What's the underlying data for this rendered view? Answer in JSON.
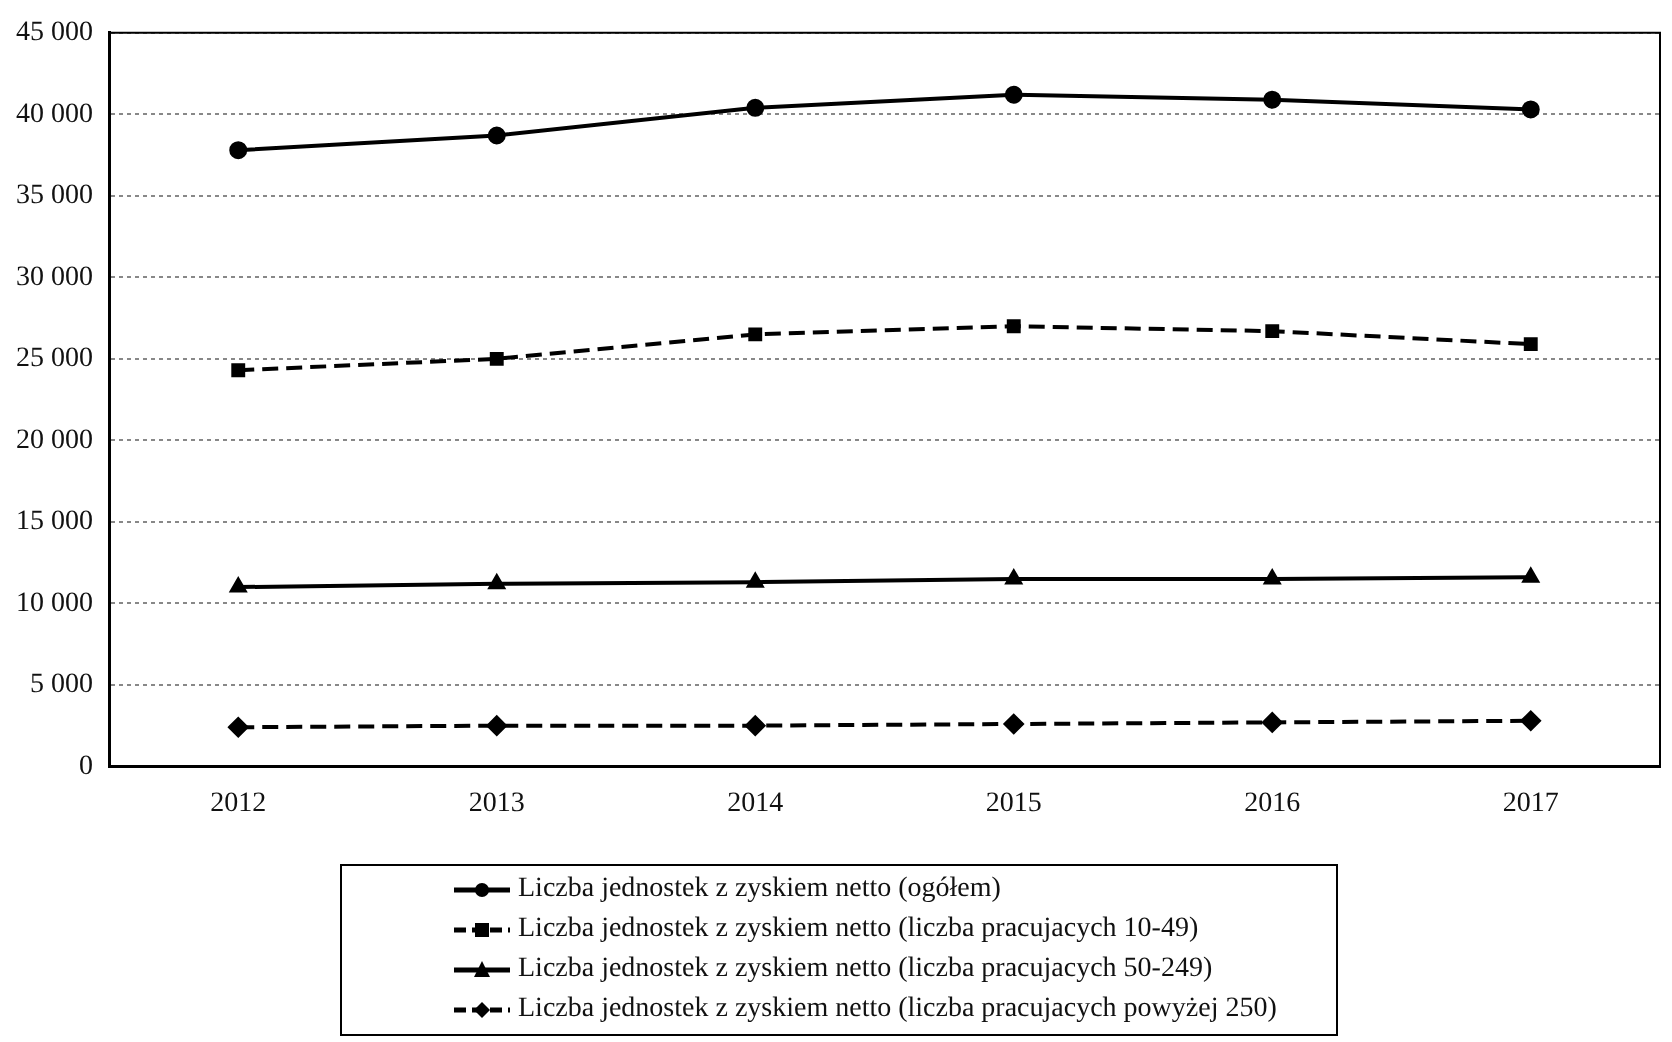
{
  "chart_data": {
    "type": "line",
    "categories": [
      "2012",
      "2013",
      "2014",
      "2015",
      "2016",
      "2017"
    ],
    "ylim": [
      0,
      45000
    ],
    "yticks": [
      {
        "value": 0,
        "label": "0"
      },
      {
        "value": 5000,
        "label": "5 000"
      },
      {
        "value": 10000,
        "label": "10 000"
      },
      {
        "value": 15000,
        "label": "15 000"
      },
      {
        "value": 20000,
        "label": "20 000"
      },
      {
        "value": 25000,
        "label": "25 000"
      },
      {
        "value": 30000,
        "label": "30 000"
      },
      {
        "value": 35000,
        "label": "35 000"
      },
      {
        "value": 40000,
        "label": "40 000"
      },
      {
        "value": 45000,
        "label": "45 000"
      }
    ],
    "grid": "y",
    "legend": "bottom",
    "series": [
      {
        "name": "Liczba jednostek z zyskiem netto (ogółem)",
        "color": "#000000",
        "marker": "circle",
        "line_style": "solid",
        "values": [
          37800,
          38700,
          40400,
          41200,
          40900,
          40300
        ]
      },
      {
        "name": "Liczba jednostek z zyskiem netto (liczba pracujacych 10-49)",
        "color": "#000000",
        "marker": "square",
        "line_style": "dashed",
        "values": [
          24300,
          25000,
          26500,
          27000,
          26700,
          25900
        ]
      },
      {
        "name": "Liczba jednostek z zyskiem netto (liczba pracujacych 50-249)",
        "color": "#000000",
        "marker": "triangle",
        "line_style": "solid",
        "values": [
          11000,
          11200,
          11300,
          11500,
          11500,
          11600
        ]
      },
      {
        "name": "Liczba jednostek z zyskiem netto (liczba pracujacych powyżej 250)",
        "color": "#000000",
        "marker": "diamond",
        "line_style": "dashed",
        "values": [
          2400,
          2500,
          2500,
          2600,
          2700,
          2800
        ]
      }
    ]
  }
}
